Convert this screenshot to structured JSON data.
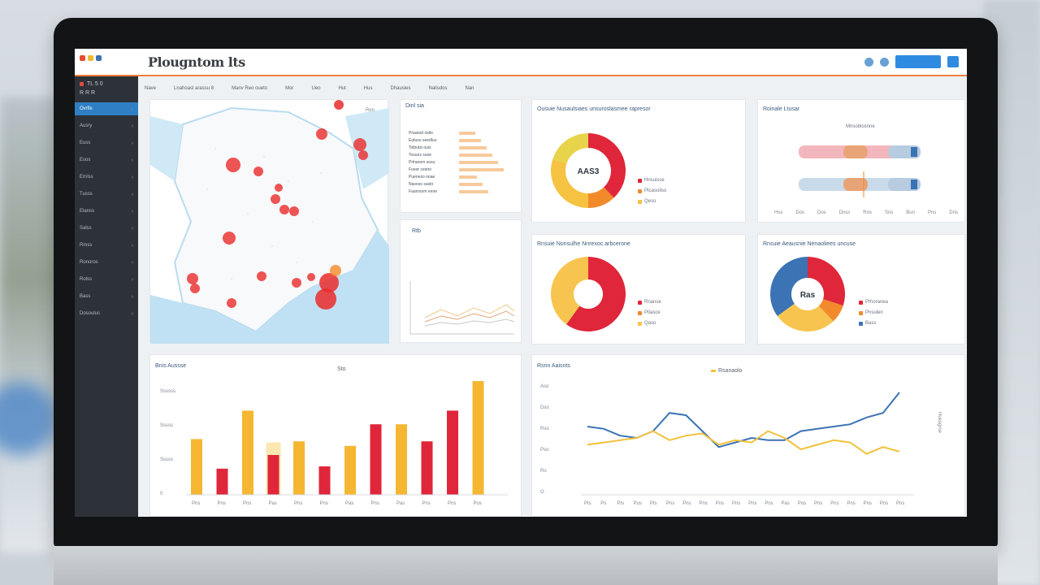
{
  "app": {
    "title": "Plougntom lts"
  },
  "colors": {
    "accent": "#f07f3c",
    "blue": "#2f8be0",
    "red": "#e0263a",
    "yellow": "#f5b731",
    "orange": "#f28a2c",
    "sidebar": "#2c3238"
  },
  "topbar": {
    "icons": [
      "user-icon",
      "settings-icon"
    ],
    "cta_label": "",
    "menu_icon": "menu-icon"
  },
  "sidebar": {
    "header": [
      "TL 5 0",
      "R  R  R"
    ],
    "items": [
      {
        "label": "Ovrfis",
        "active": true
      },
      {
        "label": "Ausry"
      },
      {
        "label": "Euss"
      },
      {
        "label": "Esos"
      },
      {
        "label": "Ernlss"
      },
      {
        "label": "Tusss"
      },
      {
        "label": "Elanss"
      },
      {
        "label": "Salss"
      },
      {
        "label": "Rmss"
      },
      {
        "label": "Ronoros"
      },
      {
        "label": "Rolss"
      },
      {
        "label": "Bass"
      },
      {
        "label": "Dosoulus"
      }
    ]
  },
  "filters": [
    "Nave",
    "Lnahoasl arassu 8",
    "Manv Reo oueto",
    "Mor",
    "Ueo",
    "Hut",
    "Hus",
    "Dhausies",
    "Nalisdos",
    "Nan"
  ],
  "map_panel": {
    "label": "Ren"
  },
  "list_panel": {
    "title": "Dinl sia",
    "rows": [
      "Pnasiod ostle",
      "Eutusu seedlus",
      "Tolbutsi ouis",
      "Tosuos suoe",
      "Prlnarem sosu",
      "Foeor cestro",
      "Pueneso nnae",
      "Nasoso sasto",
      "Faarnsom enne"
    ]
  },
  "trend_panel": {
    "label": "Rtb"
  },
  "donut1": {
    "title": "Ousuie Nusaulsiaes unsuroslasmee rapresor",
    "center": "AAS3",
    "legend": [
      "Hnsuisse",
      "Ptcasoliso",
      "Qeso"
    ]
  },
  "donut2": {
    "title": "Rnsuie Nonsulhe Nnrexoc arbcerone",
    "legend": [
      "Rnanse",
      "Ptlasce",
      "Qaso"
    ]
  },
  "donut3": {
    "title": "Rnsuie Aeausnie Nenaoliees uncuse",
    "center": "Ras",
    "legend": [
      "Prhoranea",
      "Pnsulen",
      "Bass"
    ]
  },
  "box_panel": {
    "title": "Roinale Ltusar",
    "label": "Mnsoblosnne",
    "axis": [
      "Hss",
      "Dos",
      "Dos",
      "Dnss",
      "Ros",
      "Sns",
      "Bun",
      "Pns",
      "Dns"
    ]
  },
  "bar_chart": {
    "title": "Bnis Aussse",
    "legend": "Sto",
    "y_ticks": [
      "Ssssss",
      "Sssss",
      "Sssss",
      "0"
    ]
  },
  "line_chart": {
    "title": "Rsnn Aaisnts",
    "legend": "Rsanaolo",
    "y_ticks": [
      "Aso",
      "Dso",
      "Rso",
      "Pso",
      "Ro",
      "O"
    ],
    "right_label": "Huesgroe"
  },
  "chart_data": [
    {
      "type": "pie",
      "values": [
        38,
        12,
        30,
        20
      ],
      "colors": [
        "#e0263a",
        "#f28a2c",
        "#f5c242",
        "#e8d44a"
      ]
    },
    {
      "type": "pie",
      "values": [
        60,
        40
      ],
      "colors": [
        "#e0263a",
        "#f7c54f"
      ]
    },
    {
      "type": "pie",
      "values": [
        30,
        8,
        27,
        35
      ],
      "colors": [
        "#e0263a",
        "#f28a2c",
        "#f7c54f",
        "#3b73b4"
      ]
    },
    {
      "type": "bar",
      "categories": [
        "Pns",
        "Pns",
        "Pns",
        "Pas",
        "Pns",
        "Pns",
        "Pas",
        "Pns",
        "Pas",
        "Pns",
        "Pns",
        "Pos"
      ],
      "values": [
        49,
        23,
        74,
        35,
        47,
        25,
        43,
        62,
        62,
        47,
        74,
        100
      ],
      "highlight": [
        null,
        null,
        null,
        46,
        null,
        null,
        null,
        null,
        null,
        null,
        null,
        null
      ],
      "colors": [
        "#f5b731",
        "#e0263a",
        "#f5b731",
        "#e0263a",
        "#f5b731",
        "#e0263a",
        "#f5b731",
        "#e0263a",
        "#f5b731",
        "#e0263a",
        "#e0263a",
        "#f5b731"
      ],
      "ylim": [
        0,
        100
      ]
    },
    {
      "type": "line",
      "categories": [
        "Pts",
        "Ps",
        "Pts",
        "Pus",
        "Pts",
        "Pns",
        "Pns",
        "Pns",
        "Pns",
        "Pns",
        "Pns",
        "Pns",
        "Pas",
        "Pos",
        "Pns",
        "Pns",
        "Pns",
        "Pns",
        "Pns",
        "Pns"
      ],
      "series": [
        {
          "values": [
            60,
            58,
            52,
            50,
            56,
            72,
            70,
            56,
            42,
            46,
            50,
            48,
            48,
            56,
            58,
            60,
            62,
            68,
            72,
            90
          ],
          "color": "#3b73b4"
        },
        {
          "values": [
            44,
            46,
            48,
            50,
            56,
            48,
            52,
            54,
            44,
            48,
            46,
            56,
            50,
            40,
            44,
            48,
            46,
            36,
            42,
            38
          ],
          "color": "#f0c23c"
        }
      ],
      "ylim": [
        0,
        100
      ]
    }
  ]
}
